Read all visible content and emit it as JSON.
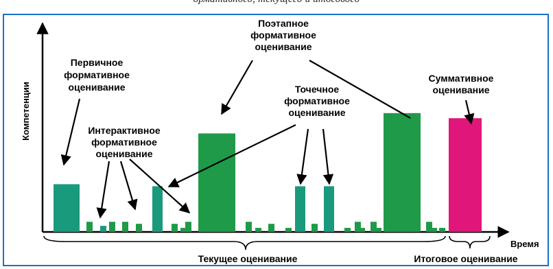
{
  "caption_cropped": "ормативного, текущего и итогового",
  "colors": {
    "frame": "#1a6fc9",
    "teal": "#1a9a7c",
    "green": "#1f9a48",
    "magenta": "#e0167a",
    "ink": "#000000"
  },
  "axis": {
    "y_label": "Компетенции",
    "x_label": "Время"
  },
  "labels": {
    "primary": [
      "Первичное",
      "формативное",
      "оценивание"
    ],
    "interactive": [
      "Интерактивное",
      "формативное",
      "оценивание"
    ],
    "stepwise": [
      "Поэтапное",
      "формативное",
      "оценивание"
    ],
    "point": [
      "Точечное",
      "формативное",
      "оценивание"
    ],
    "summative": [
      "Суммативное",
      "оценивание"
    ]
  },
  "brackets": {
    "current": "Текущее оценивание",
    "final": "Итоговое оценивание"
  },
  "bars": [
    {
      "kind": "primary",
      "level": 4.7,
      "color": "teal"
    },
    {
      "kind": "small",
      "level": 1.0,
      "color": "green"
    },
    {
      "kind": "small",
      "level": 0.6,
      "color": "teal"
    },
    {
      "kind": "small",
      "level": 1.0,
      "color": "green"
    },
    {
      "kind": "small",
      "level": 1.0,
      "color": "green"
    },
    {
      "kind": "small",
      "level": 0.8,
      "color": "green"
    },
    {
      "kind": "medium",
      "level": 4.5,
      "color": "teal"
    },
    {
      "kind": "small",
      "level": 0.8,
      "color": "green"
    },
    {
      "kind": "small",
      "level": 0.4,
      "color": "green"
    },
    {
      "kind": "small",
      "level": 1.0,
      "color": "green"
    },
    {
      "kind": "stepwise",
      "level": 9.7,
      "color": "green"
    },
    {
      "kind": "small",
      "level": 1.0,
      "color": "green"
    },
    {
      "kind": "small",
      "level": 0.4,
      "color": "green"
    },
    {
      "kind": "small",
      "level": 0.8,
      "color": "green"
    },
    {
      "kind": "small",
      "level": 0.4,
      "color": "green"
    },
    {
      "kind": "point",
      "level": 4.5,
      "color": "teal"
    },
    {
      "kind": "small",
      "level": 0.8,
      "color": "green"
    },
    {
      "kind": "point",
      "level": 4.5,
      "color": "teal"
    },
    {
      "kind": "small",
      "level": 0.4,
      "color": "green"
    },
    {
      "kind": "small",
      "level": 1.0,
      "color": "green"
    },
    {
      "kind": "small",
      "level": 0.4,
      "color": "green"
    },
    {
      "kind": "small",
      "level": 1.0,
      "color": "green"
    },
    {
      "kind": "small",
      "level": 0.4,
      "color": "green"
    },
    {
      "kind": "stepwise",
      "level": 11.7,
      "color": "green"
    },
    {
      "kind": "small",
      "level": 1.0,
      "color": "green"
    },
    {
      "kind": "small",
      "level": 0.4,
      "color": "green"
    },
    {
      "kind": "small",
      "level": 0.4,
      "color": "green"
    },
    {
      "kind": "summative",
      "level": 11.2,
      "color": "magenta"
    }
  ]
}
